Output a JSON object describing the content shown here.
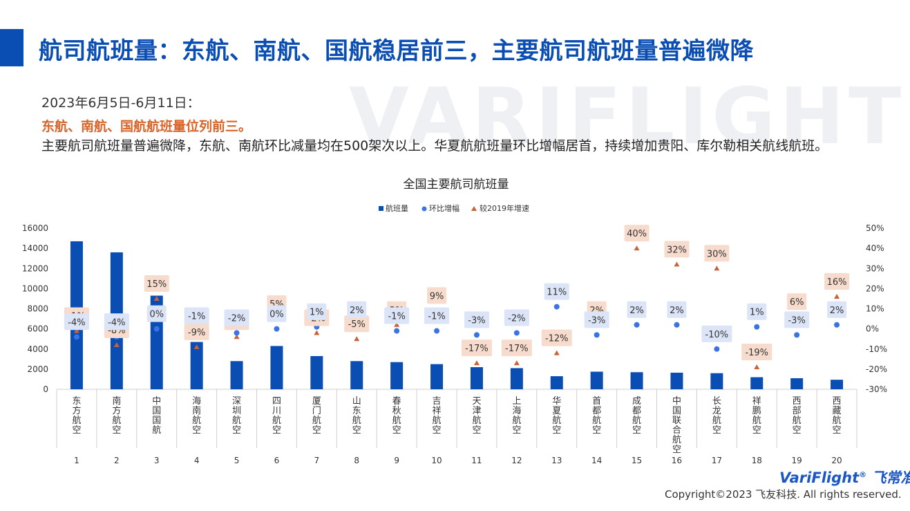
{
  "header": {
    "title": "航司航班量：东航、南航、国航稳居前三，主要航司航班量普遍微降"
  },
  "watermark": "VARIFLIGHT",
  "intro": {
    "date_range": "2023年6月5日-6月11日：",
    "highlight": "东航、南航、国航航班量位列前三。",
    "description": "主要航司航班量普遍微降，东航、南航环比减量均在500架次以上。华夏航航班量环比增幅居首，持续增加贵阳、库尔勒相关航线航班。"
  },
  "chart_data": {
    "type": "bar",
    "title": "全国主要航司航班量",
    "categories": [
      "东方航空",
      "南方航空",
      "中国国航",
      "海南航空",
      "深圳航空",
      "四川航空",
      "厦门航空",
      "山东航空",
      "春秋航空",
      "吉祥航空",
      "天津航空",
      "上海航空",
      "华夏航空",
      "首都航空",
      "成都航空",
      "中国联合航空",
      "长龙航空",
      "祥鹏航空",
      "西部航空",
      "西藏航空"
    ],
    "ranks": [
      "1",
      "2",
      "3",
      "4",
      "5",
      "6",
      "7",
      "8",
      "9",
      "10",
      "11",
      "12",
      "13",
      "14",
      "15",
      "16",
      "17",
      "18",
      "19",
      "20"
    ],
    "ylim_left": [
      0,
      16000
    ],
    "yticks_left": [
      "0",
      "2000",
      "4000",
      "6000",
      "8000",
      "10000",
      "12000",
      "14000",
      "16000"
    ],
    "ylim_right": [
      -30,
      50
    ],
    "yticks_right": [
      "-30%",
      "-20%",
      "-10%",
      "0%",
      "10%",
      "20%",
      "30%",
      "40%",
      "50%"
    ],
    "legend_position": "top-center",
    "series": [
      {
        "name": "航班量",
        "kind": "bar",
        "axis": "left",
        "color": "#0a4db3",
        "values": [
          14700,
          13600,
          9300,
          4700,
          2800,
          4300,
          3300,
          2800,
          2700,
          2500,
          2200,
          2100,
          1300,
          1750,
          1700,
          1650,
          1600,
          1200,
          1100,
          950
        ]
      },
      {
        "name": "环比增幅",
        "kind": "point",
        "axis": "right",
        "color": "#3a73e6",
        "values": [
          -4,
          -4,
          0,
          -1,
          -2,
          0,
          1,
          2,
          -1,
          -1,
          -3,
          -2,
          11,
          -3,
          2,
          2,
          -10,
          1,
          -3,
          2
        ],
        "labels": [
          "-4%",
          "-4%",
          "0%",
          "-1%",
          "-2%",
          "0%",
          "1%",
          "2%",
          "-1%",
          "-1%",
          "-3%",
          "-2%",
          "11%",
          "-3%",
          "2%",
          "2%",
          "-10%",
          "1%",
          "-3%",
          "2%"
        ]
      },
      {
        "name": "较2019年增速",
        "kind": "point",
        "axis": "right",
        "color": "#c8623a",
        "values": [
          -1,
          -8,
          15,
          -9,
          -4,
          5,
          -2,
          -5,
          2,
          9,
          -17,
          -17,
          -12,
          2,
          40,
          32,
          30,
          -19,
          6,
          16
        ],
        "labels": [
          "-1%",
          "-8%",
          "15%",
          "-9%",
          "-4%",
          "5%",
          "-2%",
          "-5%",
          "2%",
          "9%",
          "-17%",
          "-17%",
          "-12%",
          "2%",
          "40%",
          "32%",
          "30%",
          "-19%",
          "6%",
          "16%"
        ]
      }
    ]
  },
  "footer": {
    "brand_latin": "VariFlight",
    "brand_reg": "®",
    "brand_cn": "飞常准",
    "copyright": "Copyright©2023 飞友科技. All rights reserved."
  }
}
